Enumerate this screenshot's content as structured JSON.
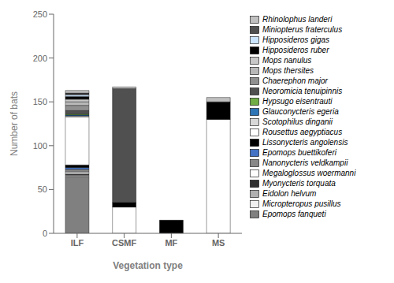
{
  "chart_data": {
    "type": "bar",
    "stacked": true,
    "categories": [
      "ILF",
      "CSMF",
      "MF",
      "MS"
    ],
    "series": [
      {
        "name": "Epomops fanqueti",
        "color": "#808080",
        "values": [
          65,
          0,
          0,
          0
        ]
      },
      {
        "name": "Micropteropus pusillus",
        "color": "#f0f0f0",
        "values": [
          1,
          0,
          0,
          0
        ]
      },
      {
        "name": "Eidolon helvum",
        "color": "#b0b0b0",
        "values": [
          1,
          0,
          0,
          0
        ]
      },
      {
        "name": "Myonycteris torquata",
        "color": "#303030",
        "values": [
          1,
          0,
          0,
          0
        ]
      },
      {
        "name": "Megaloglossus woermanni",
        "color": "#ffffff",
        "values": [
          2,
          30,
          0,
          0
        ]
      },
      {
        "name": "Nanonycteris veldkampii",
        "color": "#888888",
        "values": [
          3,
          0,
          0,
          0
        ]
      },
      {
        "name": "Epomops buettikoferi",
        "color": "#4472c4",
        "values": [
          2,
          0,
          0,
          0
        ]
      },
      {
        "name": "Lissonycteris angolensis",
        "color": "#000000",
        "values": [
          3,
          0,
          0,
          0
        ]
      },
      {
        "name": "Rousettus aegyptiacus",
        "color": "#ffffff",
        "values": [
          55,
          0,
          0,
          130
        ]
      },
      {
        "name": "Scotophilus dinganii",
        "color": "#d8d8d8",
        "values": [
          1,
          0,
          0,
          0
        ]
      },
      {
        "name": "Glauconycteris egeria",
        "color": "#2e75b6",
        "values": [
          1,
          0,
          0,
          0
        ]
      },
      {
        "name": "Hypsugo eisentrauti",
        "color": "#70ad47",
        "values": [
          1,
          0,
          0,
          0
        ]
      },
      {
        "name": "Neoromicia tenuipinnis",
        "color": "#505050",
        "values": [
          4,
          0,
          0,
          0
        ]
      },
      {
        "name": "Chaerephon major",
        "color": "#909090",
        "values": [
          6,
          0,
          0,
          0
        ]
      },
      {
        "name": "Mops thersites",
        "color": "#b8b8b8",
        "values": [
          4,
          0,
          0,
          0
        ]
      },
      {
        "name": "Mops nanulus",
        "color": "#c8c8c8",
        "values": [
          3,
          0,
          0,
          0
        ]
      },
      {
        "name": "Hipposideros ruber",
        "color": "#000000",
        "values": [
          3,
          5,
          15,
          20
        ]
      },
      {
        "name": "Hipposideros gigas",
        "color": "#cce5ff",
        "values": [
          2,
          0,
          0,
          0
        ]
      },
      {
        "name": "Miniopterus fraterculus",
        "color": "#505050",
        "values": [
          2,
          130,
          0,
          0
        ]
      },
      {
        "name": "Rhinolophus landeri",
        "color": "#c0c0c0",
        "values": [
          3,
          2,
          0,
          5
        ]
      }
    ],
    "ylabel": "Number of bats",
    "xlabel": "Vegetation type",
    "ylim": [
      0,
      250
    ],
    "yticks": [
      0,
      50,
      100,
      150,
      200,
      250
    ],
    "grid": false,
    "legend": "right"
  }
}
